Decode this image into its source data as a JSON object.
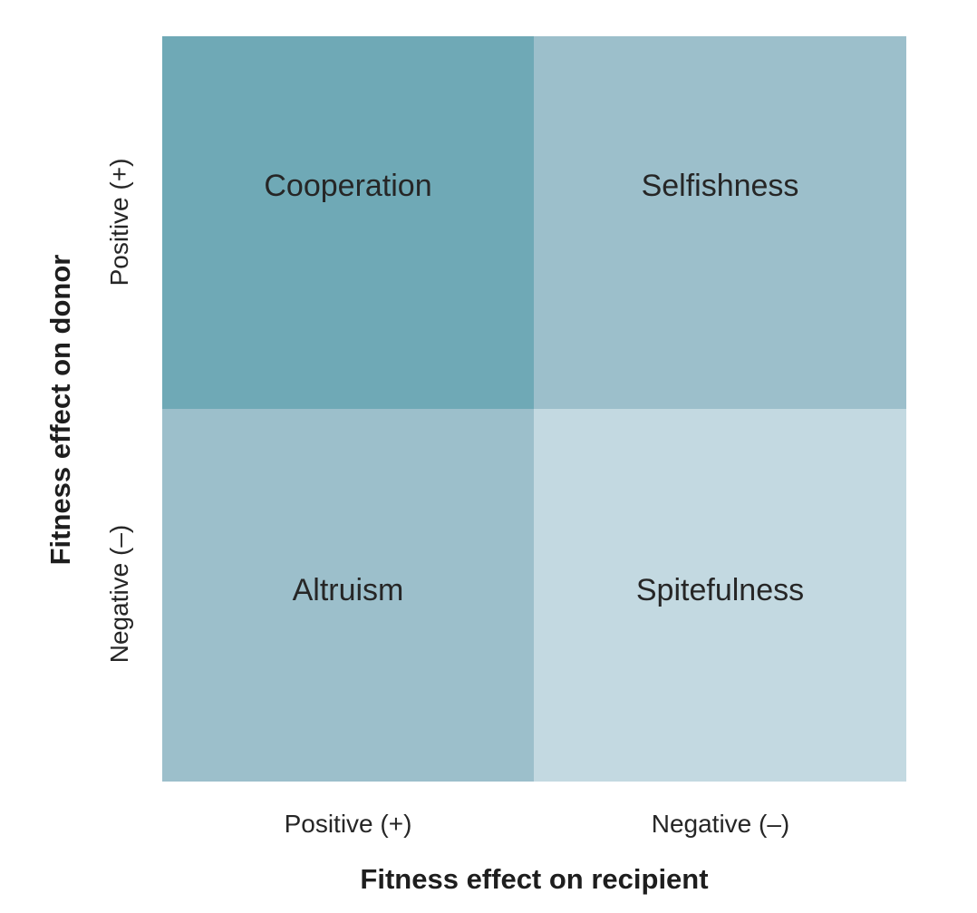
{
  "quadrants": {
    "top_left": {
      "label": "Cooperation",
      "color": "#6fa9b6"
    },
    "top_right": {
      "label": "Selfishness",
      "color": "#9cbfcb"
    },
    "bottom_left": {
      "label": "Altruism",
      "color": "#9cbfcb"
    },
    "bottom_right": {
      "label": "Spitefulness",
      "color": "#c3d9e1"
    }
  },
  "x_axis": {
    "title": "Fitness effect on recipient",
    "ticks": [
      "Positive (+)",
      "Negative (–)"
    ]
  },
  "y_axis": {
    "title": "Fitness effect on donor",
    "ticks": [
      "Positive (+)",
      "Negative (–)"
    ]
  }
}
